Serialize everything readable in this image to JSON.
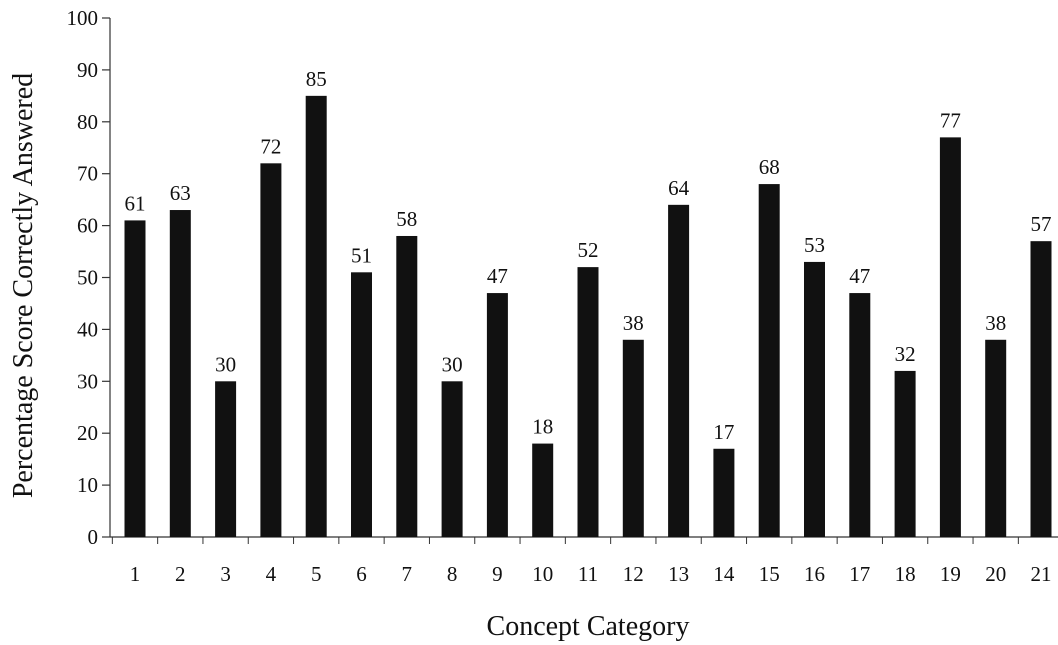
{
  "chart_data": {
    "type": "bar",
    "title": "",
    "xlabel": "Concept Category",
    "ylabel": "Percentage Score Correctly Answered",
    "ylim": [
      0,
      100
    ],
    "yticks": [
      0,
      10,
      20,
      30,
      40,
      50,
      60,
      70,
      80,
      90,
      100
    ],
    "categories": [
      "1",
      "2",
      "3",
      "4",
      "5",
      "6",
      "7",
      "8",
      "9",
      "10",
      "11",
      "12",
      "13",
      "14",
      "15",
      "16",
      "17",
      "18",
      "19",
      "20",
      "21"
    ],
    "values": [
      61,
      63,
      30,
      72,
      85,
      51,
      58,
      30,
      47,
      18,
      52,
      38,
      64,
      17,
      68,
      53,
      47,
      32,
      77,
      38,
      57
    ],
    "data_labels": [
      "61",
      "63",
      "30",
      "72",
      "85",
      "51",
      "58",
      "30",
      "47",
      "18",
      "52",
      "38",
      "64",
      "17",
      "68",
      "53",
      "47",
      "32",
      "77",
      "38",
      "57"
    ],
    "bar_color": "#111111",
    "grid": false,
    "legend": "none"
  }
}
